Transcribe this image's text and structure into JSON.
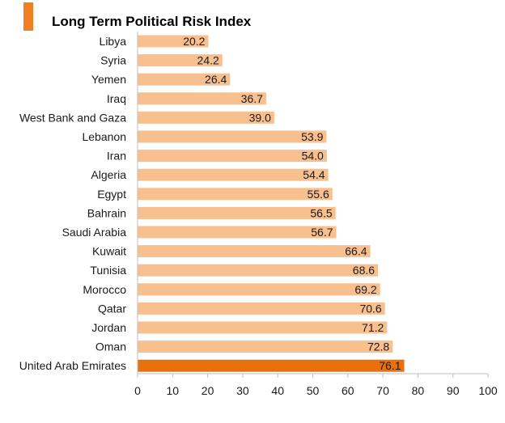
{
  "chart_data": {
    "type": "bar",
    "orientation": "horizontal",
    "title": "Long Term Political Risk Index",
    "categories": [
      "Libya",
      "Syria",
      "Yemen",
      "Iraq",
      "West Bank and Gaza",
      "Lebanon",
      "Iran",
      "Algeria",
      "Egypt",
      "Bahrain",
      "Saudi Arabia",
      "Kuwait",
      "Tunisia",
      "Morocco",
      "Qatar",
      "Jordan",
      "Oman",
      "United Arab Emirates"
    ],
    "values": [
      20.2,
      24.2,
      26.4,
      36.7,
      39.0,
      53.9,
      54.0,
      54.4,
      55.6,
      56.5,
      56.7,
      66.4,
      68.6,
      69.2,
      70.6,
      71.2,
      72.8,
      76.1
    ],
    "value_labels": [
      "20.2",
      "24.2",
      "26.4",
      "36.7",
      "39.0",
      "53.9",
      "54.0",
      "54.4",
      "55.6",
      "56.5",
      "56.7",
      "66.4",
      "68.6",
      "69.2",
      "70.6",
      "71.2",
      "72.8",
      "76.1"
    ],
    "highlight": "United Arab Emirates",
    "xlim": [
      0,
      100
    ],
    "xticks": [
      0,
      10,
      20,
      30,
      40,
      50,
      60,
      70,
      80,
      90,
      100
    ],
    "xlabel": "",
    "ylabel": "",
    "grid": false,
    "colors": {
      "bar": "#f9c08f",
      "highlight": "#e8700f",
      "title_accent": "#f07f22",
      "axis": "#bfbfbf"
    }
  }
}
